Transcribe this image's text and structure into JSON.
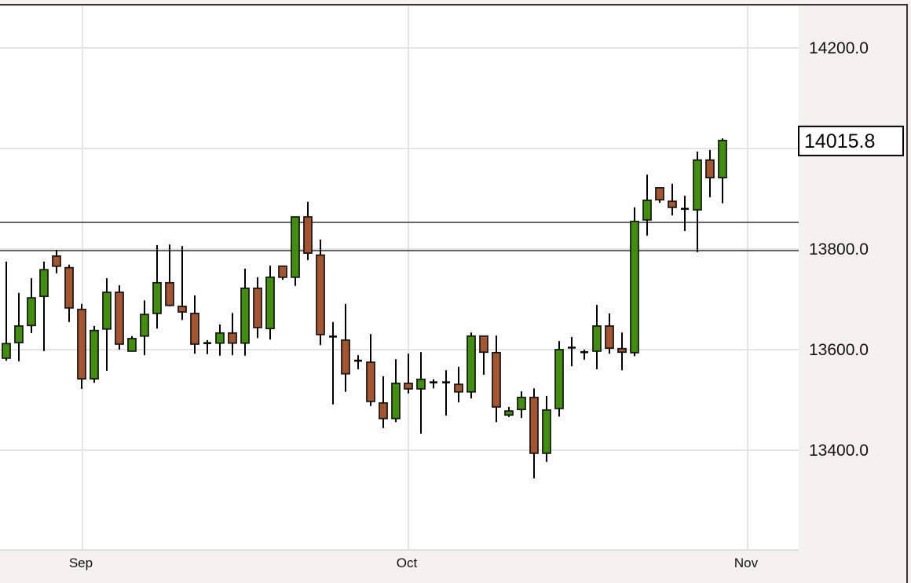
{
  "chart_data": {
    "type": "candlestick",
    "title": "",
    "xlabel": "",
    "ylabel": "",
    "ylim": [
      13200,
      14290
    ],
    "grid": true,
    "y_ticks": [
      "14200.0",
      "13800.0",
      "13600.0",
      "13400.0"
    ],
    "y_tick_values": [
      14200,
      13800,
      13600,
      13400
    ],
    "x_ticks": [
      {
        "label": "Sep",
        "index": 6.06
      },
      {
        "label": "Oct",
        "index": 32
      },
      {
        "label": "Nov",
        "index": 59
      }
    ],
    "extra_gridline_value": 14000,
    "last_price": "14015.8",
    "last_price_value": 14015.8,
    "horizontal_lines": [
      13853,
      13797
    ],
    "colors": {
      "up": "#3f8f0a",
      "down": "#a4552d",
      "outline": "#1a1a1a",
      "grid": "#e4e4e4",
      "hline": "#444444",
      "axis_bg": "#f4f2ef"
    },
    "ohlc": [
      [
        13583,
        13775,
        13578,
        13612
      ],
      [
        13614,
        13713,
        13577,
        13647
      ],
      [
        13648,
        13742,
        13633,
        13703
      ],
      [
        13706,
        13775,
        13597,
        13759
      ],
      [
        13786,
        13798,
        13752,
        13766
      ],
      [
        13763,
        13769,
        13655,
        13683
      ],
      [
        13680,
        13691,
        13522,
        13542
      ],
      [
        13542,
        13647,
        13534,
        13638
      ],
      [
        13641,
        13742,
        13558,
        13714
      ],
      [
        13714,
        13728,
        13600,
        13611
      ],
      [
        13597,
        13627,
        13597,
        13622
      ],
      [
        13627,
        13698,
        13589,
        13670
      ],
      [
        13672,
        13808,
        13642,
        13733
      ],
      [
        13733,
        13809,
        13686,
        13688
      ],
      [
        13686,
        13806,
        13659,
        13675
      ],
      [
        13672,
        13708,
        13592,
        13611
      ],
      [
        13613,
        13619,
        13591,
        13612
      ],
      [
        13613,
        13650,
        13588,
        13633
      ],
      [
        13633,
        13673,
        13589,
        13613
      ],
      [
        13613,
        13761,
        13588,
        13722
      ],
      [
        13722,
        13744,
        13623,
        13644
      ],
      [
        13642,
        13767,
        13620,
        13744
      ],
      [
        13766,
        13766,
        13739,
        13744
      ],
      [
        13744,
        13864,
        13727,
        13864
      ],
      [
        13864,
        13894,
        13778,
        13792
      ],
      [
        13788,
        13819,
        13609,
        13630
      ],
      [
        13626,
        13655,
        13491,
        13624
      ],
      [
        13619,
        13691,
        13516,
        13552
      ],
      [
        13578,
        13589,
        13561,
        13577
      ],
      [
        13575,
        13631,
        13488,
        13497
      ],
      [
        13494,
        13547,
        13444,
        13463
      ],
      [
        13463,
        13581,
        13456,
        13533
      ],
      [
        13533,
        13592,
        13513,
        13522
      ],
      [
        13522,
        13595,
        13433,
        13541
      ],
      [
        13534,
        13541,
        13523,
        13535
      ],
      [
        13534,
        13559,
        13469,
        13535
      ],
      [
        13531,
        13566,
        13495,
        13516
      ],
      [
        13516,
        13634,
        13503,
        13627
      ],
      [
        13627,
        13627,
        13550,
        13595
      ],
      [
        13594,
        13628,
        13456,
        13486
      ],
      [
        13470,
        13486,
        13466,
        13478
      ],
      [
        13481,
        13517,
        13464,
        13505
      ],
      [
        13505,
        13523,
        13344,
        13394
      ],
      [
        13394,
        13508,
        13377,
        13480
      ],
      [
        13483,
        13617,
        13467,
        13600
      ],
      [
        13603,
        13625,
        13567,
        13604
      ],
      [
        13594,
        13600,
        13580,
        13595
      ],
      [
        13597,
        13689,
        13561,
        13647
      ],
      [
        13647,
        13672,
        13592,
        13603
      ],
      [
        13602,
        13634,
        13559,
        13595
      ],
      [
        13594,
        13883,
        13587,
        13855
      ],
      [
        13858,
        13948,
        13827,
        13897
      ],
      [
        13922,
        13923,
        13892,
        13898
      ],
      [
        13895,
        13930,
        13867,
        13883
      ],
      [
        13880,
        13906,
        13836,
        13880
      ],
      [
        13878,
        13994,
        13794,
        13977
      ],
      [
        13977,
        13997,
        13903,
        13942
      ],
      [
        13942,
        14020,
        13891,
        14016
      ]
    ]
  }
}
